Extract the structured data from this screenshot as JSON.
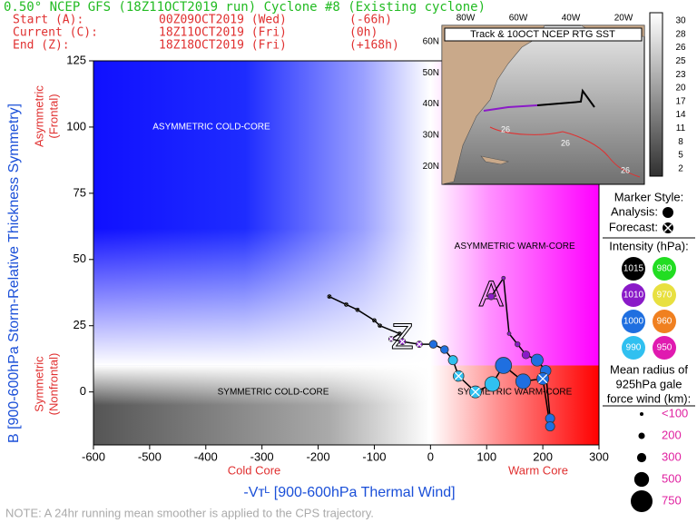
{
  "chart_data": {
    "type": "scatter",
    "title": "0.50° NCEP GFS (18Z11OCT2019 run) Cyclone #8 (Existing cyclone)",
    "header": [
      [
        "Start (A):",
        "00Z09OCT2019 (Wed)",
        "(-66h)"
      ],
      [
        "Current (C):",
        "18Z11OCT2019 (Fri)",
        "(0h)"
      ],
      [
        "End (Z):",
        "18Z18OCT2019 (Fri)",
        "(+168h)"
      ]
    ],
    "ylabel": "B [900-600hPa Storm-Relative Thickness Symmetry]",
    "ylabel_top": [
      "Asymmetric",
      "(Frontal)"
    ],
    "ylabel_bottom": [
      "Symmetric",
      "(Nonfrontal)"
    ],
    "xlabel": "-Vᴛᴸ [900-600hPa Thermal Wind]",
    "xlabel_left": "Cold Core",
    "xlabel_right": "Warm Core",
    "note": "NOTE:  A 24hr running mean smoother is applied to the CPS trajectory.",
    "regions": [
      "ASYMMETRIC COLD-CORE",
      "ASYMMETRIC WARM-CORE",
      "SYMMETRIC COLD-CORE",
      "SYMMETRIC WARM-CORE"
    ],
    "xlim": [
      -600,
      300
    ],
    "ylim": [
      -20,
      125
    ],
    "xticks": [
      -600,
      -500,
      -400,
      -300,
      -200,
      -100,
      0,
      100,
      200,
      300
    ],
    "yticks": [
      0,
      25,
      50,
      75,
      100,
      125
    ],
    "thresholds": {
      "x": 0,
      "y": 10
    },
    "start_label": "A",
    "end_label": "Z",
    "points": {
      "x": [
        108,
        130,
        140,
        155,
        170,
        190,
        205,
        213,
        213,
        200,
        165,
        130,
        110,
        80,
        50,
        40,
        25,
        5,
        -20,
        -50,
        -70,
        -55,
        -90,
        -100,
        -130,
        -150,
        -180
      ],
      "y": [
        36,
        43,
        22,
        18,
        14,
        12,
        8,
        -10,
        -13,
        5,
        4,
        10,
        3,
        0,
        6,
        12,
        16,
        18,
        18,
        19,
        20,
        22,
        25,
        27,
        31,
        33,
        36
      ],
      "radius_km": [
        200,
        100,
        100,
        150,
        250,
        400,
        350,
        300,
        300,
        400,
        500,
        550,
        500,
        400,
        350,
        300,
        250,
        250,
        200,
        200,
        150,
        100,
        100,
        100,
        100,
        100,
        100
      ],
      "pressure": [
        1010,
        1010,
        1010,
        1010,
        1010,
        1000,
        1000,
        1000,
        1000,
        1000,
        1000,
        1000,
        990,
        990,
        990,
        990,
        1000,
        1000,
        1010,
        1010,
        1010,
        1015,
        1015,
        1015,
        1015,
        1015,
        1015
      ],
      "forecast": [
        false,
        false,
        false,
        false,
        false,
        false,
        false,
        false,
        false,
        true,
        false,
        false,
        false,
        true,
        true,
        false,
        false,
        false,
        true,
        true,
        true,
        true,
        true,
        true,
        true,
        true,
        true
      ]
    },
    "legend": {
      "marker_title": "Marker Style:",
      "analysis": "Analysis:",
      "forecast": "Forecast:",
      "intensity_title": "Intensity (hPa):",
      "intensity": [
        {
          "value": 1015,
          "color": "#000000"
        },
        {
          "value": 980,
          "color": "#22dd22"
        },
        {
          "value": 1010,
          "color": "#8a1ac8"
        },
        {
          "value": 970,
          "color": "#e8e040"
        },
        {
          "value": 1000,
          "color": "#1f6fe0"
        },
        {
          "value": 960,
          "color": "#f08020"
        },
        {
          "value": 990,
          "color": "#30c0f0"
        },
        {
          "value": 950,
          "color": "#e01ab0"
        }
      ],
      "radius_title": [
        "Mean radius of",
        "925hPa gale",
        "force wind (km):"
      ],
      "radius": [
        {
          "value": 100,
          "label": "<100"
        },
        200,
        300,
        500,
        750
      ]
    },
    "inset": {
      "title": "Track & 10OCT NCEP RTG SST",
      "lon_ticks": [
        {
          "value": -80,
          "label": "80W"
        },
        {
          "value": -60,
          "label": "60W"
        },
        {
          "value": -40,
          "label": "40W"
        },
        {
          "value": -20,
          "label": "20W"
        }
      ],
      "lat_ticks": [
        {
          "value": 60,
          "label": "60N"
        },
        {
          "value": 50,
          "label": "50N"
        },
        {
          "value": 40,
          "label": "40N"
        },
        {
          "value": 30,
          "label": "30N"
        },
        {
          "value": 20,
          "label": "20N"
        }
      ],
      "sst_label": "26",
      "colorbar": [
        30,
        28,
        26,
        25,
        23,
        20,
        17,
        14,
        11,
        8,
        5,
        2
      ]
    }
  }
}
